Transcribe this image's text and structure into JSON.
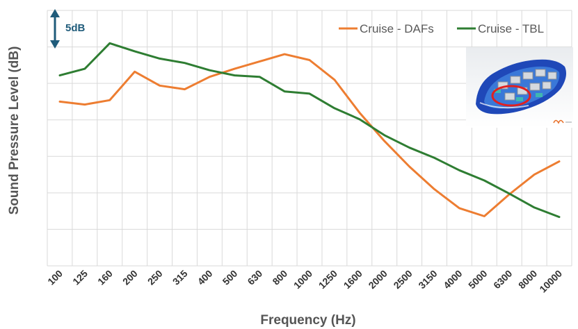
{
  "chart_data": {
    "type": "line",
    "title": "",
    "xlabel": "Frequency (Hz)",
    "ylabel": "Sound Pressure Level (dB)",
    "categories": [
      "100",
      "125",
      "160",
      "200",
      "250",
      "315",
      "400",
      "500",
      "630",
      "800",
      "1000",
      "1250",
      "1600",
      "2000",
      "2500",
      "3150",
      "4000",
      "5000",
      "6300",
      "8000",
      "10000"
    ],
    "ylim": [
      0,
      35
    ],
    "grid": true,
    "legend_position": "top-right",
    "scale_annotation": "5dB",
    "series": [
      {
        "name": "Cruise - DAFs",
        "color": "#ed7d31",
        "values": [
          22.5,
          22.1,
          22.7,
          26.6,
          24.7,
          24.2,
          25.9,
          27.0,
          28.0,
          29.0,
          28.2,
          25.5,
          21.0,
          17.1,
          13.6,
          10.5,
          7.9,
          6.8,
          9.8,
          12.5,
          14.3
        ]
      },
      {
        "name": "Cruise - TBL",
        "color": "#2e7d32",
        "values": [
          26.1,
          27.0,
          30.5,
          29.4,
          28.4,
          27.8,
          26.8,
          26.1,
          25.9,
          23.9,
          23.6,
          21.6,
          20.1,
          17.9,
          16.2,
          14.8,
          13.1,
          11.7,
          9.9,
          8.0,
          6.7
        ]
      }
    ]
  },
  "icons": {
    "inset_image": "car-interior-acoustic-model-icon",
    "scale_arrow": "double-arrow-icon",
    "logo": "esi-logo-icon"
  }
}
